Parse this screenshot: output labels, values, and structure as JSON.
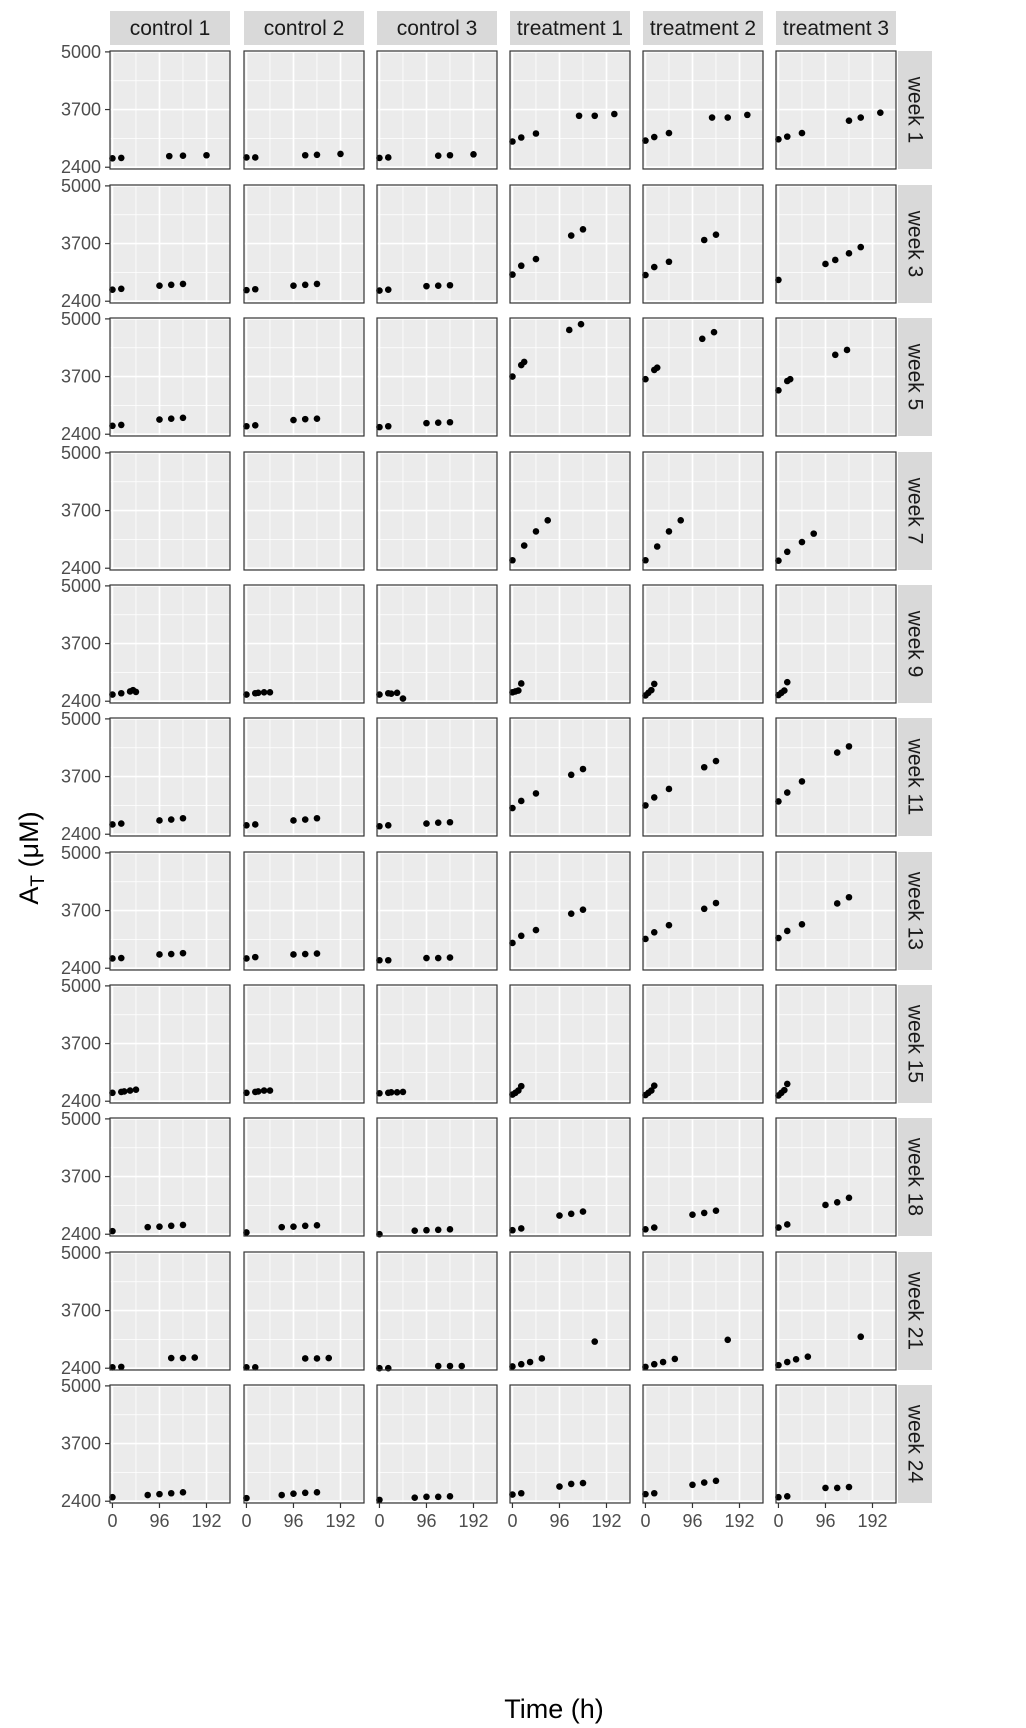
{
  "chart_data": {
    "type": "scatter",
    "facet_rows": [
      "week 1",
      "week 3",
      "week 5",
      "week 7",
      "week 9",
      "week 11",
      "week 13",
      "week 15",
      "week 18",
      "week 21",
      "week 24"
    ],
    "facet_cols": [
      "control 1",
      "control 2",
      "control 3",
      "treatment 1",
      "treatment 2",
      "treatment 3"
    ],
    "xlabel": "Time (h)",
    "ylabel": "A",
    "ylabel_sub": "T",
    "ylabel_unit": " (μM)",
    "xlim": [
      -5,
      240
    ],
    "ylim": [
      2360,
      5020
    ],
    "x_ticks": [
      0,
      96,
      192
    ],
    "x_tick_labels": [
      "0",
      "96",
      "192"
    ],
    "y_ticks": [
      2400,
      3700,
      5000
    ],
    "y_tick_labels": [
      "2400",
      "3700",
      "5000"
    ],
    "grid": true,
    "panels": [
      [
        {
          "x": [
            0,
            18,
            116,
            144,
            192
          ],
          "y": [
            2600,
            2610,
            2650,
            2660,
            2670
          ]
        },
        {
          "x": [
            0,
            18,
            120,
            144,
            192
          ],
          "y": [
            2620,
            2620,
            2670,
            2680,
            2700
          ]
        },
        {
          "x": [
            0,
            18,
            120,
            144,
            192
          ],
          "y": [
            2610,
            2620,
            2660,
            2670,
            2690
          ]
        },
        {
          "x": [
            0,
            18,
            48,
            136,
            168,
            208
          ],
          "y": [
            2980,
            3070,
            3160,
            3560,
            3560,
            3600
          ]
        },
        {
          "x": [
            0,
            18,
            48,
            136,
            168,
            208
          ],
          "y": [
            3000,
            3080,
            3170,
            3520,
            3520,
            3580
          ]
        },
        {
          "x": [
            0,
            18,
            48,
            144,
            168,
            208
          ],
          "y": [
            3030,
            3090,
            3170,
            3450,
            3520,
            3630
          ]
        }
      ],
      [
        {
          "x": [
            0,
            18,
            96,
            120,
            144
          ],
          "y": [
            2660,
            2680,
            2750,
            2770,
            2790
          ]
        },
        {
          "x": [
            0,
            18,
            96,
            120,
            144
          ],
          "y": [
            2650,
            2670,
            2750,
            2770,
            2790
          ]
        },
        {
          "x": [
            0,
            18,
            96,
            120,
            144
          ],
          "y": [
            2640,
            2660,
            2740,
            2750,
            2760
          ]
        },
        {
          "x": [
            0,
            18,
            48,
            120,
            144
          ],
          "y": [
            3000,
            3200,
            3350,
            3880,
            4020
          ]
        },
        {
          "x": [
            0,
            18,
            48,
            120,
            144
          ],
          "y": [
            2990,
            3170,
            3290,
            3780,
            3900
          ]
        },
        {
          "x": [
            0,
            96,
            116,
            144,
            168
          ],
          "y": [
            2880,
            3240,
            3330,
            3480,
            3620
          ]
        }
      ],
      [
        {
          "x": [
            0,
            18,
            96,
            120,
            144
          ],
          "y": [
            2590,
            2610,
            2730,
            2750,
            2770
          ]
        },
        {
          "x": [
            0,
            18,
            96,
            120,
            144
          ],
          "y": [
            2580,
            2600,
            2720,
            2740,
            2750
          ]
        },
        {
          "x": [
            0,
            18,
            96,
            120,
            144
          ],
          "y": [
            2560,
            2580,
            2650,
            2660,
            2670
          ]
        },
        {
          "x": [
            0,
            18,
            24,
            116,
            140
          ],
          "y": [
            3700,
            3960,
            4030,
            4750,
            4880
          ]
        },
        {
          "x": [
            0,
            18,
            24,
            116,
            140
          ],
          "y": [
            3640,
            3850,
            3900,
            4550,
            4700
          ]
        },
        {
          "x": [
            0,
            18,
            24,
            116,
            140
          ],
          "y": [
            3390,
            3600,
            3640,
            4190,
            4300
          ]
        }
      ],
      [
        {
          "x": [],
          "y": []
        },
        {
          "x": [],
          "y": []
        },
        {
          "x": [],
          "y": []
        },
        {
          "x": [
            0,
            24,
            48,
            72
          ],
          "y": [
            2580,
            2910,
            3230,
            3480
          ]
        },
        {
          "x": [
            0,
            24,
            48,
            72
          ],
          "y": [
            2580,
            2890,
            3230,
            3480
          ]
        },
        {
          "x": [
            0,
            18,
            48,
            72
          ],
          "y": [
            2570,
            2770,
            2990,
            3180
          ]
        }
      ],
      [
        {
          "x": [
            0,
            18,
            36,
            42,
            48
          ],
          "y": [
            2550,
            2580,
            2620,
            2650,
            2610
          ]
        },
        {
          "x": [
            0,
            18,
            24,
            36,
            48
          ],
          "y": [
            2550,
            2580,
            2590,
            2600,
            2600
          ]
        },
        {
          "x": [
            0,
            18,
            24,
            36,
            48
          ],
          "y": [
            2550,
            2580,
            2570,
            2590,
            2460
          ]
        },
        {
          "x": [
            0,
            6,
            12,
            18
          ],
          "y": [
            2600,
            2620,
            2640,
            2800
          ]
        },
        {
          "x": [
            0,
            6,
            12,
            18
          ],
          "y": [
            2530,
            2590,
            2650,
            2790
          ]
        },
        {
          "x": [
            0,
            6,
            12,
            18
          ],
          "y": [
            2540,
            2590,
            2640,
            2830
          ]
        }
      ],
      [
        {
          "x": [
            0,
            18,
            96,
            120,
            144
          ],
          "y": [
            2620,
            2640,
            2710,
            2730,
            2760
          ]
        },
        {
          "x": [
            0,
            18,
            96,
            120,
            144
          ],
          "y": [
            2600,
            2620,
            2710,
            2730,
            2760
          ]
        },
        {
          "x": [
            0,
            18,
            96,
            120,
            144
          ],
          "y": [
            2580,
            2600,
            2640,
            2660,
            2670
          ]
        },
        {
          "x": [
            0,
            18,
            48,
            120,
            144
          ],
          "y": [
            2990,
            3150,
            3320,
            3740,
            3870
          ]
        },
        {
          "x": [
            0,
            18,
            48,
            120,
            144
          ],
          "y": [
            3050,
            3230,
            3420,
            3910,
            4050
          ]
        },
        {
          "x": [
            0,
            18,
            48,
            120,
            144
          ],
          "y": [
            3140,
            3340,
            3590,
            4240,
            4380
          ]
        }
      ],
      [
        {
          "x": [
            0,
            18,
            96,
            120,
            144
          ],
          "y": [
            2620,
            2630,
            2710,
            2720,
            2740
          ]
        },
        {
          "x": [
            0,
            18,
            96,
            120,
            144
          ],
          "y": [
            2620,
            2650,
            2710,
            2720,
            2730
          ]
        },
        {
          "x": [
            0,
            18,
            96,
            120,
            144
          ],
          "y": [
            2580,
            2580,
            2630,
            2630,
            2640
          ]
        },
        {
          "x": [
            0,
            18,
            48,
            120,
            144
          ],
          "y": [
            2970,
            3130,
            3260,
            3630,
            3720
          ]
        },
        {
          "x": [
            0,
            18,
            48,
            120,
            144
          ],
          "y": [
            3060,
            3210,
            3370,
            3740,
            3870
          ]
        },
        {
          "x": [
            0,
            18,
            48,
            120,
            144
          ],
          "y": [
            3080,
            3240,
            3390,
            3860,
            4000
          ]
        }
      ],
      [
        {
          "x": [
            0,
            18,
            24,
            36,
            48
          ],
          "y": [
            2590,
            2610,
            2620,
            2640,
            2660
          ]
        },
        {
          "x": [
            0,
            18,
            24,
            36,
            48
          ],
          "y": [
            2590,
            2610,
            2620,
            2640,
            2640
          ]
        },
        {
          "x": [
            0,
            18,
            24,
            36,
            48
          ],
          "y": [
            2580,
            2590,
            2600,
            2600,
            2610
          ]
        },
        {
          "x": [
            0,
            6,
            12,
            18
          ],
          "y": [
            2550,
            2590,
            2640,
            2740
          ]
        },
        {
          "x": [
            0,
            6,
            12,
            18
          ],
          "y": [
            2540,
            2590,
            2640,
            2750
          ]
        },
        {
          "x": [
            0,
            6,
            12,
            18
          ],
          "y": [
            2530,
            2590,
            2650,
            2790
          ]
        }
      ],
      [
        {
          "x": [
            0,
            72,
            96,
            120,
            144
          ],
          "y": [
            2470,
            2560,
            2570,
            2590,
            2610
          ]
        },
        {
          "x": [
            0,
            72,
            96,
            120,
            144
          ],
          "y": [
            2440,
            2560,
            2570,
            2590,
            2600
          ]
        },
        {
          "x": [
            0,
            72,
            96,
            120,
            144
          ],
          "y": [
            2400,
            2480,
            2490,
            2500,
            2510
          ]
        },
        {
          "x": [
            0,
            18,
            96,
            120,
            144
          ],
          "y": [
            2490,
            2530,
            2820,
            2860,
            2910
          ]
        },
        {
          "x": [
            0,
            18,
            96,
            120,
            144
          ],
          "y": [
            2510,
            2550,
            2840,
            2880,
            2930
          ]
        },
        {
          "x": [
            0,
            18,
            96,
            120,
            144
          ],
          "y": [
            2550,
            2620,
            3060,
            3120,
            3220
          ]
        }
      ],
      [
        {
          "x": [
            0,
            18,
            120,
            144,
            168
          ],
          "y": [
            2420,
            2430,
            2630,
            2630,
            2640
          ]
        },
        {
          "x": [
            0,
            18,
            120,
            144,
            168
          ],
          "y": [
            2420,
            2420,
            2620,
            2620,
            2630
          ]
        },
        {
          "x": [
            0,
            18,
            120,
            144,
            168
          ],
          "y": [
            2400,
            2400,
            2450,
            2450,
            2450
          ]
        },
        {
          "x": [
            0,
            18,
            36,
            60,
            168
          ],
          "y": [
            2440,
            2490,
            2540,
            2620,
            3000
          ]
        },
        {
          "x": [
            0,
            18,
            36,
            60,
            168
          ],
          "y": [
            2430,
            2490,
            2540,
            2610,
            3040
          ]
        },
        {
          "x": [
            0,
            18,
            36,
            60,
            168
          ],
          "y": [
            2470,
            2540,
            2600,
            2660,
            3110
          ]
        }
      ],
      [
        {
          "x": [
            0,
            72,
            96,
            120,
            144
          ],
          "y": [
            2490,
            2540,
            2560,
            2580,
            2600
          ]
        },
        {
          "x": [
            0,
            72,
            96,
            120,
            144
          ],
          "y": [
            2470,
            2540,
            2570,
            2590,
            2600
          ]
        },
        {
          "x": [
            0,
            72,
            96,
            120,
            144
          ],
          "y": [
            2430,
            2480,
            2500,
            2500,
            2510
          ]
        },
        {
          "x": [
            0,
            18,
            96,
            120,
            144
          ],
          "y": [
            2550,
            2580,
            2730,
            2790,
            2810
          ]
        },
        {
          "x": [
            0,
            18,
            96,
            120,
            144
          ],
          "y": [
            2560,
            2580,
            2770,
            2820,
            2860
          ]
        },
        {
          "x": [
            0,
            18,
            96,
            120,
            144
          ],
          "y": [
            2490,
            2510,
            2700,
            2700,
            2720
          ]
        }
      ]
    ]
  }
}
